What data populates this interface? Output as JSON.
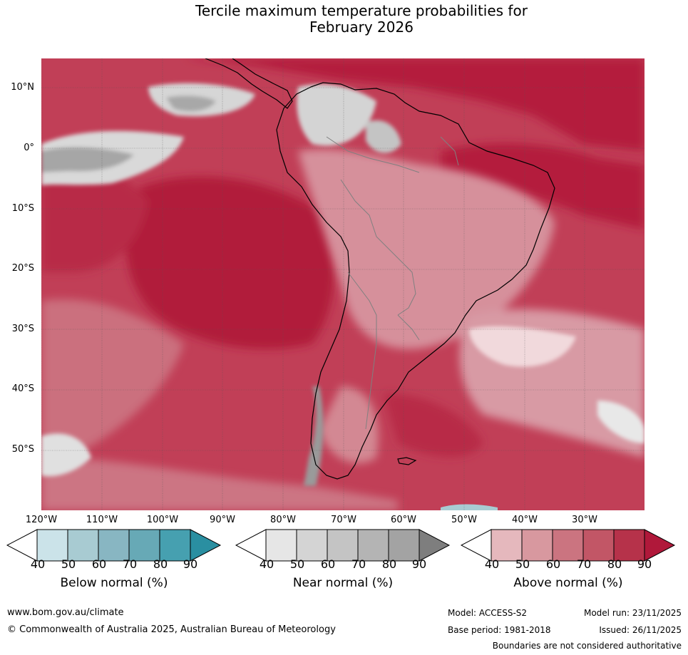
{
  "title_line1": "Tercile maximum temperature probabilities for",
  "title_line2": "February 2026",
  "lat_labels": [
    "10°N",
    "0°",
    "10°S",
    "20°S",
    "30°S",
    "40°S",
    "50°S"
  ],
  "lon_labels": [
    "120°W",
    "110°W",
    "100°W",
    "90°W",
    "80°W",
    "70°W",
    "60°W",
    "50°W",
    "40°W",
    "30°W"
  ],
  "colorbars": [
    {
      "label": "Below normal (%)",
      "ticks": [
        "40",
        "50",
        "60",
        "70",
        "80",
        "90"
      ],
      "colors": [
        "#ffffff",
        "#cbe3e9",
        "#a8cbd2",
        "#88b6c2",
        "#67a9b6",
        "#46a0b0",
        "#2a8fa1"
      ]
    },
    {
      "label": "Near normal (%)",
      "ticks": [
        "40",
        "50",
        "60",
        "70",
        "80",
        "90"
      ],
      "colors": [
        "#ffffff",
        "#e6e6e6",
        "#d4d4d4",
        "#c4c4c4",
        "#b4b4b4",
        "#a3a3a3",
        "#7e7e7e"
      ]
    },
    {
      "label": "Above normal (%)",
      "ticks": [
        "40",
        "50",
        "60",
        "70",
        "80",
        "90"
      ],
      "colors": [
        "#ffffff",
        "#e5b8bd",
        "#d8989f",
        "#cb7480",
        "#c25666",
        "#b6324a",
        "#b0183a"
      ]
    }
  ],
  "footer": {
    "website": "www.bom.gov.au/climate",
    "copyright": "© Commonwealth of Australia 2025, Australian Bureau of Meteorology",
    "model": "Model: ACCESS-S2",
    "base_period": "Base period: 1981-2018",
    "model_run": "Model run: 23/11/2025",
    "issued": "Issued: 26/11/2025",
    "disclaimer": "Boundaries are not considered authoritative"
  }
}
